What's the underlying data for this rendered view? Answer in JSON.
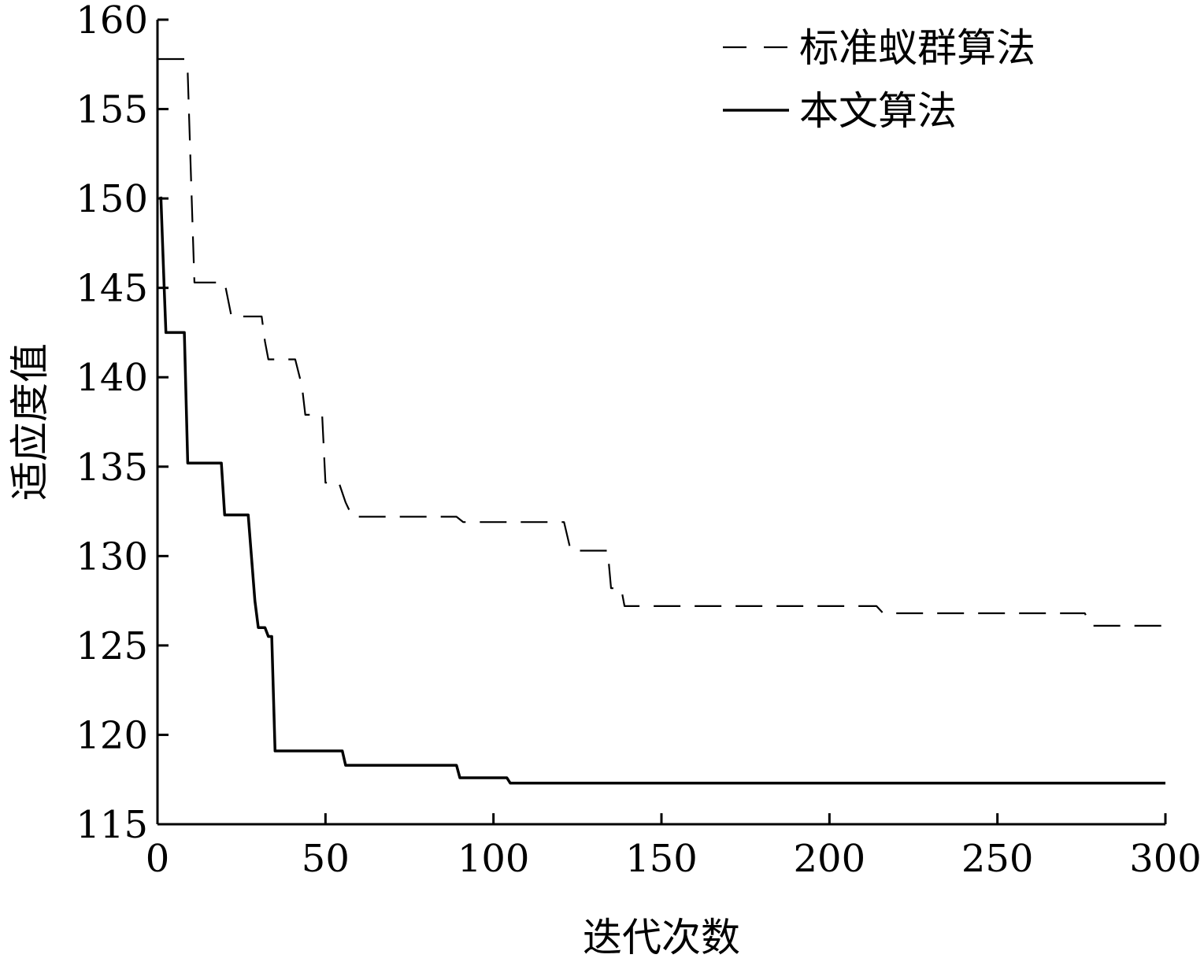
{
  "chart_data": {
    "type": "line",
    "xlabel": "迭代次数",
    "ylabel": "适应度值",
    "xlim": [
      0,
      300
    ],
    "ylim": [
      115,
      160
    ],
    "x_ticks": [
      0,
      50,
      100,
      150,
      200,
      250,
      300
    ],
    "y_ticks": [
      115,
      120,
      125,
      130,
      135,
      140,
      145,
      150,
      155,
      160
    ],
    "grid": false,
    "legend_position": "top-right",
    "series": [
      {
        "name": "标准蚁群算法",
        "style": "dashed",
        "color": "#000000",
        "points": [
          [
            0,
            157.8
          ],
          [
            8,
            157.8
          ],
          [
            9,
            157
          ],
          [
            10,
            151
          ],
          [
            11,
            145.3
          ],
          [
            20,
            145.3
          ],
          [
            22,
            143.4
          ],
          [
            31,
            143.4
          ],
          [
            32,
            142
          ],
          [
            33,
            141
          ],
          [
            41,
            141
          ],
          [
            43,
            139.5
          ],
          [
            44,
            137.9
          ],
          [
            49,
            137.9
          ],
          [
            50,
            134.1
          ],
          [
            54,
            134.1
          ],
          [
            56,
            133
          ],
          [
            58,
            132.2
          ],
          [
            89,
            132.2
          ],
          [
            91,
            131.9
          ],
          [
            121,
            131.9
          ],
          [
            123,
            130.3
          ],
          [
            134,
            130.3
          ],
          [
            135,
            128.2
          ],
          [
            138,
            128.2
          ],
          [
            139,
            127.2
          ],
          [
            214,
            127.2
          ],
          [
            216,
            126.8
          ],
          [
            276,
            126.8
          ],
          [
            278,
            126.1
          ],
          [
            300,
            126.1
          ]
        ]
      },
      {
        "name": "本文算法",
        "style": "solid",
        "color": "#000000",
        "points": [
          [
            1,
            150.1
          ],
          [
            2,
            145
          ],
          [
            2.5,
            142.5
          ],
          [
            8,
            142.5
          ],
          [
            9,
            135.2
          ],
          [
            19,
            135.2
          ],
          [
            20,
            132.3
          ],
          [
            27,
            132.3
          ],
          [
            29,
            127.5
          ],
          [
            30,
            126
          ],
          [
            32,
            126
          ],
          [
            33,
            125.5
          ],
          [
            34,
            125.5
          ],
          [
            35,
            119.1
          ],
          [
            55,
            119.1
          ],
          [
            56,
            118.3
          ],
          [
            89,
            118.3
          ],
          [
            90,
            117.6
          ],
          [
            104,
            117.6
          ],
          [
            105,
            117.3
          ],
          [
            300,
            117.3
          ]
        ]
      }
    ]
  }
}
